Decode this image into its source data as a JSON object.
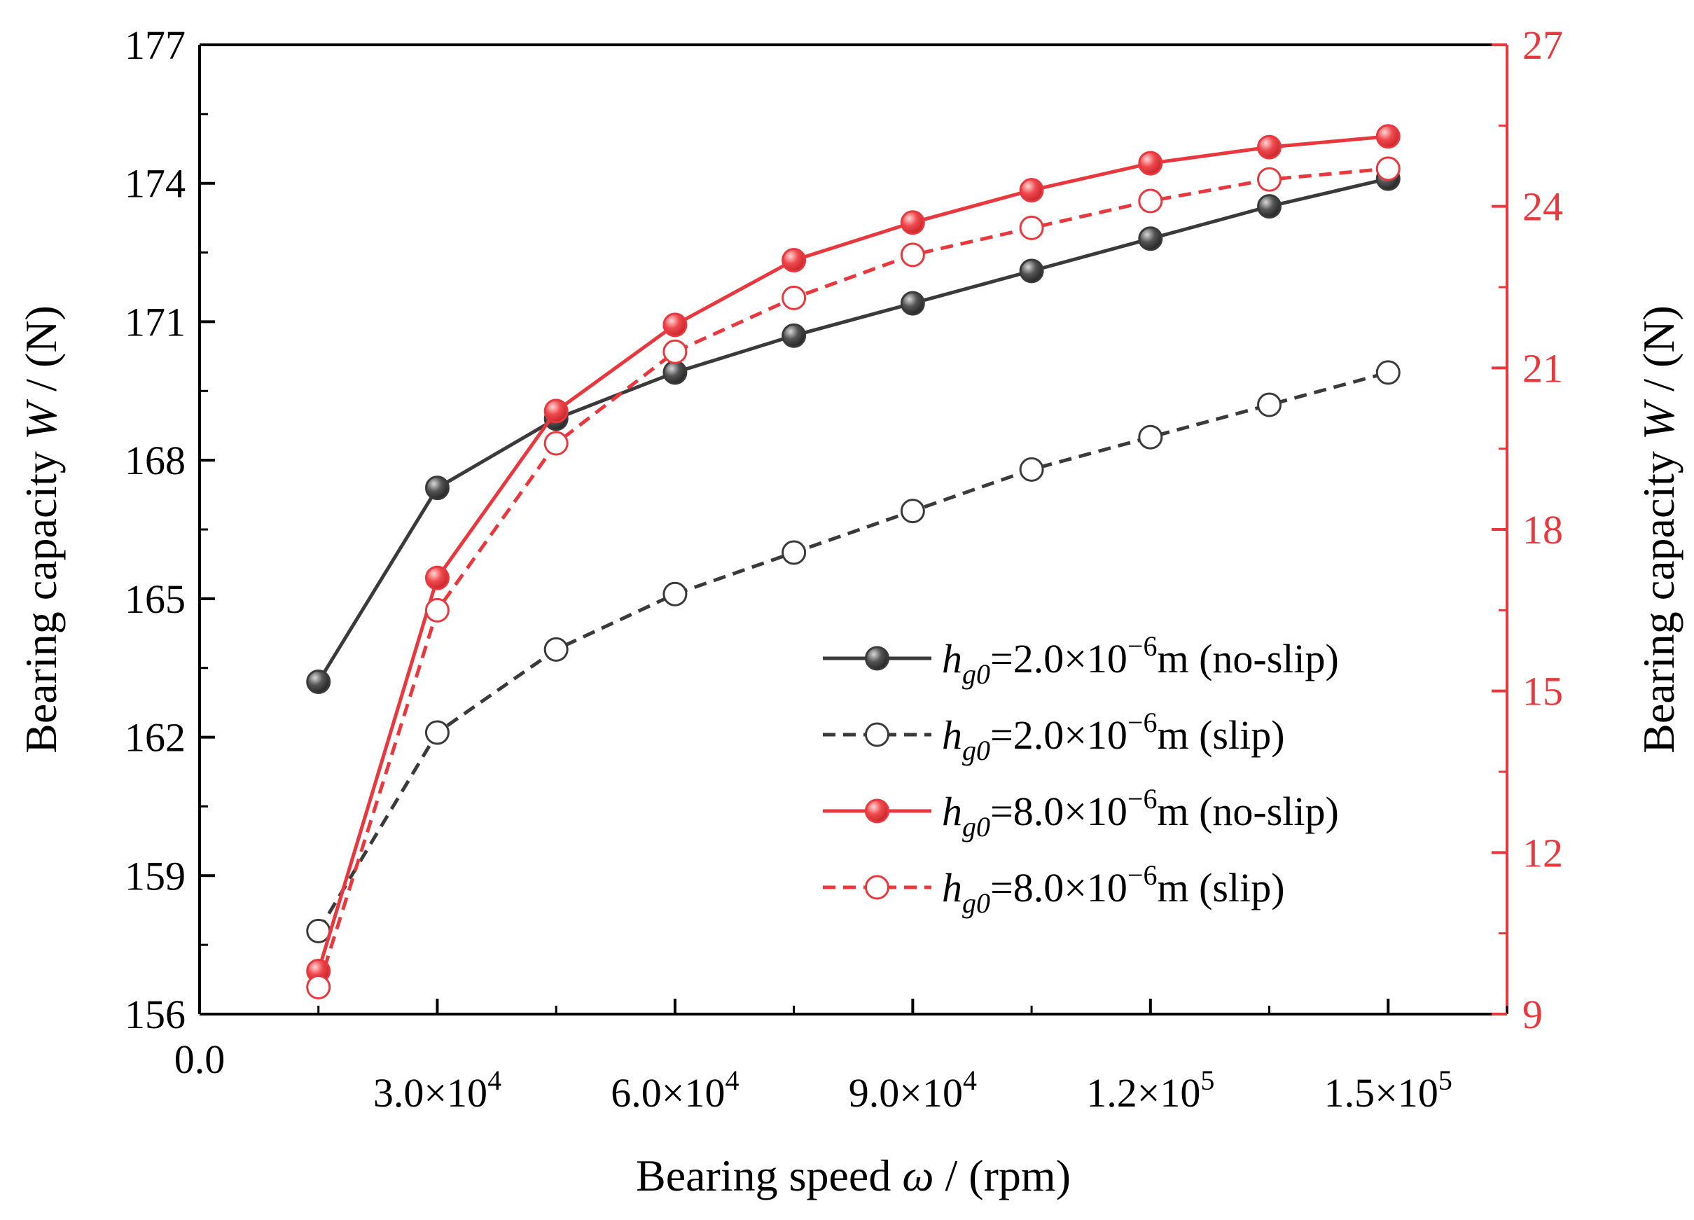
{
  "colors": {
    "black_series": "#3a3a3a",
    "red_series": "#e8383d",
    "axis_black": "#000000",
    "axis_red": "#e8383d"
  },
  "chart_data": {
    "type": "line",
    "xlabel": {
      "prefix": "Bearing speed ",
      "symbol": "ω",
      "suffix": " / (rpm)"
    },
    "ylabel_left": {
      "prefix": "Bearing capacity ",
      "symbol": "W",
      "suffix": " / (N)"
    },
    "ylabel_right": {
      "prefix": "Bearing capacity ",
      "symbol": "W",
      "suffix": " / (N)"
    },
    "xlim": [
      0,
      165000
    ],
    "ylim_left": [
      156,
      177
    ],
    "ylim_right": [
      9,
      27
    ],
    "x_ticks": [
      {
        "value": 0,
        "mant": "0.0",
        "exp": ""
      },
      {
        "value": 30000,
        "mant": "3.0×10",
        "exp": "4"
      },
      {
        "value": 60000,
        "mant": "6.0×10",
        "exp": "4"
      },
      {
        "value": 90000,
        "mant": "9.0×10",
        "exp": "4"
      },
      {
        "value": 120000,
        "mant": "1.2×10",
        "exp": "5"
      },
      {
        "value": 150000,
        "mant": "1.5×10",
        "exp": "5"
      }
    ],
    "y_ticks_left": [
      "156",
      "159",
      "162",
      "165",
      "168",
      "171",
      "174",
      "177"
    ],
    "y_ticks_right": [
      "9",
      "12",
      "15",
      "18",
      "21",
      "24",
      "27"
    ],
    "x": [
      15000,
      30000,
      45000,
      60000,
      75000,
      90000,
      105000,
      120000,
      135000,
      150000
    ],
    "series": [
      {
        "legend": {
          "var": "h",
          "sub": "g0",
          "mid": "=2.0×10",
          "exp": "−6",
          "tail": "m (no-slip)"
        },
        "axis": "left",
        "color": "black",
        "dashed": false,
        "filled": true,
        "values": [
          163.2,
          167.4,
          168.9,
          169.9,
          170.7,
          171.4,
          172.1,
          172.8,
          173.5,
          174.1
        ]
      },
      {
        "legend": {
          "var": "h",
          "sub": "g0",
          "mid": "=2.0×10",
          "exp": "−6",
          "tail": "m (slip)"
        },
        "axis": "left",
        "color": "black",
        "dashed": true,
        "filled": false,
        "values": [
          157.8,
          162.1,
          163.9,
          165.1,
          166.0,
          166.9,
          167.8,
          168.5,
          169.2,
          169.9
        ]
      },
      {
        "legend": {
          "var": "h",
          "sub": "g0",
          "mid": "=8.0×10",
          "exp": "−6",
          "tail": "m (no-slip)"
        },
        "axis": "right",
        "color": "red",
        "dashed": false,
        "filled": true,
        "values": [
          9.8,
          17.1,
          20.2,
          21.8,
          23.0,
          23.7,
          24.3,
          24.8,
          25.1,
          25.3
        ]
      },
      {
        "legend": {
          "var": "h",
          "sub": "g0",
          "mid": "=8.0×10",
          "exp": "−6",
          "tail": "m (slip)"
        },
        "axis": "right",
        "color": "red",
        "dashed": true,
        "filled": false,
        "values": [
          9.5,
          16.5,
          19.6,
          21.3,
          22.3,
          23.1,
          23.6,
          24.1,
          24.5,
          24.7
        ]
      }
    ],
    "legend_position": "center-right",
    "grid": false
  }
}
